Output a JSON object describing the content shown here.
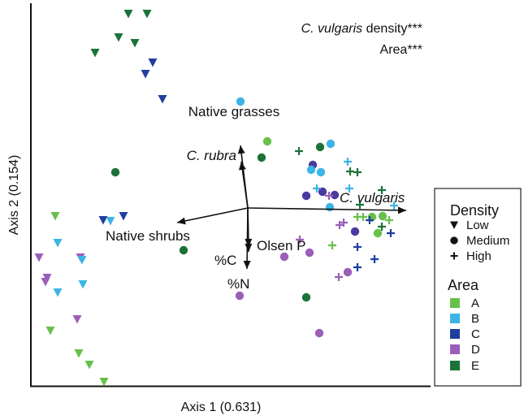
{
  "chart_data": {
    "type": "scatter",
    "title": "",
    "xlabel": "Axis 1 (0.631)",
    "ylabel": "Axis 2 (0.154)",
    "ticks_shown": false,
    "xlim": [
      -2.67,
      2.3
    ],
    "ylim": [
      -2.23,
      2.52
    ],
    "grid": false,
    "legend_placement": "right",
    "annotations": [
      {
        "italic": "C. vulgaris",
        "text": " density***"
      },
      {
        "italic": "",
        "text": "Area***"
      }
    ],
    "vectors": [
      {
        "label": "Native grasses",
        "italic": false,
        "end": [
          -0.09,
          0.77
        ]
      },
      {
        "label": "C. rubra",
        "italic": true,
        "end": [
          -0.08,
          0.57
        ]
      },
      {
        "label": "C. vulgaris",
        "italic": true,
        "end": [
          1.95,
          -0.03
        ]
      },
      {
        "label": "Native shrubs",
        "italic": false,
        "end": [
          -0.87,
          -0.18
        ]
      },
      {
        "label": "Olsen P",
        "italic": false,
        "end": [
          0.01,
          -0.48
        ]
      },
      {
        "label": "%C",
        "italic": false,
        "end": [
          0.01,
          -0.54
        ]
      },
      {
        "label": "%N",
        "italic": false,
        "end": [
          -0.01,
          -0.75
        ]
      }
    ],
    "legend": {
      "density_title": "Density",
      "density": [
        {
          "key": "Low",
          "label": "Low",
          "symbol": "triangle-down"
        },
        {
          "key": "Medium",
          "label": "Medium",
          "symbol": "circle"
        },
        {
          "key": "High",
          "label": "High",
          "symbol": "plus"
        }
      ],
      "area_title": "Area",
      "areas": [
        {
          "key": "A",
          "label": "A",
          "color": "#66c04a"
        },
        {
          "key": "B",
          "label": "B",
          "color": "#3cb4e6"
        },
        {
          "key": "C",
          "label": "C",
          "color": "#1f3f9e"
        },
        {
          "key": "D",
          "label": "D",
          "color": "#9b5fb8"
        },
        {
          "key": "E",
          "label": "E",
          "color": "#1b7337"
        }
      ]
    },
    "point_color_override": {
      "C-Medium": "#4a3a9e"
    },
    "points": [
      [
        -1.47,
        2.39,
        "E",
        "Low"
      ],
      [
        -1.24,
        2.39,
        "E",
        "Low"
      ],
      [
        -1.59,
        2.1,
        "E",
        "Low"
      ],
      [
        -1.39,
        2.03,
        "E",
        "Low"
      ],
      [
        -1.88,
        1.91,
        "E",
        "Low"
      ],
      [
        -1.17,
        1.79,
        "C",
        "Low"
      ],
      [
        -1.26,
        1.65,
        "C",
        "Low"
      ],
      [
        -1.05,
        1.34,
        "C",
        "Low"
      ],
      [
        -1.53,
        -0.1,
        "C",
        "Low"
      ],
      [
        -1.78,
        -0.15,
        "C",
        "Low"
      ],
      [
        -1.69,
        -0.16,
        "B",
        "Low"
      ],
      [
        -2.37,
        -0.1,
        "A",
        "Low"
      ],
      [
        -2.34,
        -0.43,
        "B",
        "Low"
      ],
      [
        -2.57,
        -0.61,
        "D",
        "Low"
      ],
      [
        -2.06,
        -0.61,
        "D",
        "Low"
      ],
      [
        -2.04,
        -0.64,
        "B",
        "Low"
      ],
      [
        -2.47,
        -0.86,
        "D",
        "Low"
      ],
      [
        -2.49,
        -0.91,
        "D",
        "Low"
      ],
      [
        -2.03,
        -0.94,
        "B",
        "Low"
      ],
      [
        -2.34,
        -1.04,
        "B",
        "Low"
      ],
      [
        -2.1,
        -1.37,
        "D",
        "Low"
      ],
      [
        -2.43,
        -1.51,
        "A",
        "Low"
      ],
      [
        -2.08,
        -1.79,
        "A",
        "Low"
      ],
      [
        -1.95,
        -1.93,
        "A",
        "Low"
      ],
      [
        -1.77,
        -2.14,
        "A",
        "Low"
      ],
      [
        -1.63,
        0.44,
        "E",
        "Medium"
      ],
      [
        -0.79,
        -0.52,
        "E",
        "Medium"
      ],
      [
        -0.09,
        1.31,
        "B",
        "Medium"
      ],
      [
        0.24,
        0.82,
        "A",
        "Medium"
      ],
      [
        0.89,
        0.75,
        "E",
        "Medium"
      ],
      [
        1.02,
        0.79,
        "B",
        "Medium"
      ],
      [
        0.17,
        0.62,
        "E",
        "Medium"
      ],
      [
        0.8,
        0.53,
        "C",
        "Medium"
      ],
      [
        0.78,
        0.47,
        "B",
        "Medium"
      ],
      [
        0.9,
        0.44,
        "B",
        "Medium"
      ],
      [
        0.72,
        0.15,
        "C",
        "Medium"
      ],
      [
        0.92,
        0.2,
        "C",
        "Medium"
      ],
      [
        1.07,
        0.16,
        "C",
        "Medium"
      ],
      [
        1.01,
        0.01,
        "B",
        "Medium"
      ],
      [
        1.53,
        -0.11,
        "A",
        "Medium"
      ],
      [
        1.66,
        -0.1,
        "A",
        "Medium"
      ],
      [
        1.6,
        -0.31,
        "A",
        "Medium"
      ],
      [
        1.32,
        -0.29,
        "C",
        "Medium"
      ],
      [
        0.45,
        -0.6,
        "D",
        "Medium"
      ],
      [
        0.76,
        -0.55,
        "D",
        "Medium"
      ],
      [
        1.23,
        -0.79,
        "D",
        "Medium"
      ],
      [
        -0.1,
        -1.08,
        "D",
        "Medium"
      ],
      [
        0.72,
        -1.1,
        "E",
        "Medium"
      ],
      [
        0.88,
        -1.54,
        "D",
        "Medium"
      ],
      [
        0.63,
        0.7,
        "E",
        "High"
      ],
      [
        1.23,
        0.57,
        "B",
        "High"
      ],
      [
        1.26,
        0.45,
        "E",
        "High"
      ],
      [
        1.35,
        0.44,
        "E",
        "High"
      ],
      [
        0.85,
        0.24,
        "B",
        "High"
      ],
      [
        1.0,
        0.15,
        "D",
        "High"
      ],
      [
        1.25,
        0.24,
        "B",
        "High"
      ],
      [
        1.65,
        0.22,
        "E",
        "High"
      ],
      [
        1.38,
        0.04,
        "E",
        "High"
      ],
      [
        1.8,
        0.03,
        "B",
        "High"
      ],
      [
        1.35,
        -0.11,
        "A",
        "High"
      ],
      [
        1.42,
        -0.11,
        "A",
        "High"
      ],
      [
        1.53,
        -0.12,
        "A",
        "High"
      ],
      [
        1.5,
        -0.15,
        "C",
        "High"
      ],
      [
        1.74,
        -0.15,
        "A",
        "High"
      ],
      [
        1.13,
        -0.21,
        "D",
        "High"
      ],
      [
        1.18,
        -0.18,
        "D",
        "High"
      ],
      [
        1.65,
        -0.23,
        "E",
        "High"
      ],
      [
        1.76,
        -0.31,
        "C",
        "High"
      ],
      [
        0.64,
        -0.39,
        "D",
        "High"
      ],
      [
        1.04,
        -0.46,
        "A",
        "High"
      ],
      [
        1.35,
        -0.48,
        "C",
        "High"
      ],
      [
        1.56,
        -0.63,
        "C",
        "High"
      ],
      [
        1.35,
        -0.73,
        "C",
        "High"
      ],
      [
        1.12,
        -0.85,
        "D",
        "High"
      ]
    ]
  }
}
